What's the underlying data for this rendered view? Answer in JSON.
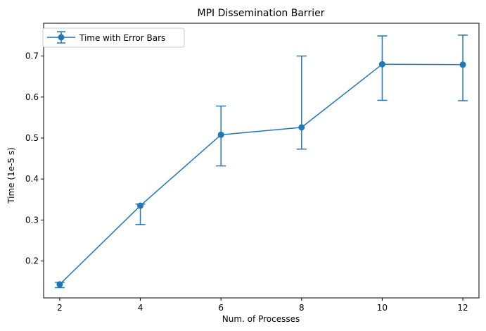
{
  "chart_data": {
    "type": "line",
    "title": "MPI Dissemination Barrier",
    "xlabel": "Num. of Processes",
    "ylabel": "Time (1e-5 s)",
    "x": [
      2,
      4,
      6,
      8,
      10,
      12
    ],
    "series": [
      {
        "name": "Time with Error Bars",
        "values": [
          0.143,
          0.335,
          0.508,
          0.526,
          0.68,
          0.679
        ],
        "error_low": [
          0.135,
          0.289,
          0.432,
          0.473,
          0.592,
          0.591
        ],
        "error_high": [
          0.148,
          0.339,
          0.578,
          0.7,
          0.749,
          0.751
        ]
      }
    ],
    "xlim": [
      1.6,
      12.4
    ],
    "ylim": [
      0.11,
      0.78
    ],
    "xticks": [
      2,
      4,
      6,
      8,
      10,
      12
    ],
    "yticks": [
      0.2,
      0.3,
      0.4,
      0.5,
      0.6,
      0.7
    ],
    "ytick_labels": [
      "0.2",
      "0.3",
      "0.4",
      "0.5",
      "0.6",
      "0.7"
    ],
    "grid": false,
    "legend_position": "top-left",
    "color": "#1f77b4"
  }
}
